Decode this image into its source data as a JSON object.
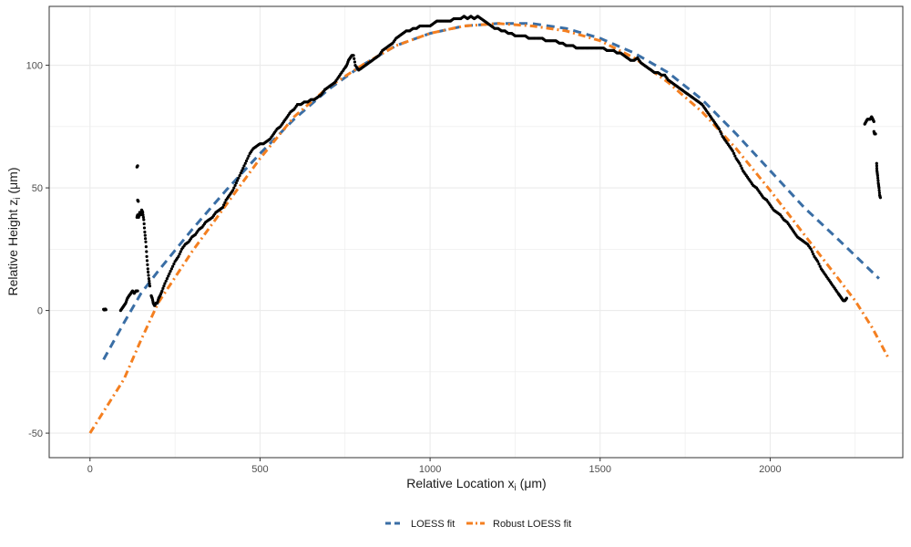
{
  "chart_data": {
    "type": "scatter",
    "xlabel": {
      "main": "Relative Location x",
      "sub": "i",
      "unit": " (μm)"
    },
    "ylabel": {
      "main": "Relative Height z",
      "sub": "i",
      "unit": " (μm)"
    },
    "xlim": [
      -120,
      2390
    ],
    "ylim": [
      -60,
      124
    ],
    "x_ticks": [
      0,
      500,
      1000,
      1500,
      2000
    ],
    "x_tick_labels": [
      "0",
      "500",
      "1000",
      "1500",
      "2000"
    ],
    "y_ticks": [
      -50,
      0,
      50,
      100
    ],
    "y_tick_labels": [
      "-50",
      "0",
      "50",
      "100"
    ],
    "grid": true,
    "legend_position": "bottom",
    "colors": {
      "points": "#000000",
      "loess": "#3a6ea5",
      "robust": "#f47f20",
      "grid": "#ebebeb",
      "panel_border": "#333333"
    },
    "points_series": [
      {
        "points": [
          [
            40,
            0.5
          ],
          [
            42,
            0.2
          ],
          [
            45,
            0.6
          ],
          [
            47,
            0.3
          ]
        ]
      },
      {
        "points": [
          [
            90,
            0
          ],
          [
            95,
            1
          ],
          [
            100,
            2
          ],
          [
            105,
            3
          ],
          [
            110,
            5
          ],
          [
            115,
            6
          ],
          [
            120,
            7
          ],
          [
            125,
            8
          ],
          [
            130,
            7
          ],
          [
            135,
            8
          ],
          [
            140,
            8
          ]
        ]
      },
      {
        "points": [
          [
            138,
            58.5
          ],
          [
            140,
            59
          ]
        ]
      },
      {
        "points": [
          [
            140,
            45
          ],
          [
            142,
            44.5
          ]
        ]
      },
      {
        "points": [
          [
            138,
            38
          ],
          [
            140,
            39
          ],
          [
            143,
            38
          ],
          [
            146,
            40
          ],
          [
            149,
            39
          ],
          [
            152,
            41
          ],
          [
            155,
            40
          ],
          [
            158,
            37
          ],
          [
            161,
            32
          ],
          [
            164,
            28
          ],
          [
            167,
            22
          ],
          [
            170,
            17
          ],
          [
            173,
            13
          ],
          [
            176,
            10
          ]
        ]
      },
      {
        "points": [
          [
            180,
            6
          ],
          [
            183,
            5
          ],
          [
            186,
            3
          ],
          [
            190,
            2
          ],
          [
            194,
            3
          ],
          [
            198,
            3
          ],
          [
            202,
            5
          ],
          [
            206,
            6
          ],
          [
            212,
            8
          ],
          [
            220,
            11
          ],
          [
            230,
            14
          ],
          [
            240,
            17
          ],
          [
            250,
            20
          ],
          [
            260,
            22
          ],
          [
            270,
            25
          ],
          [
            280,
            27
          ],
          [
            290,
            28
          ],
          [
            300,
            30
          ],
          [
            310,
            31
          ],
          [
            320,
            33
          ],
          [
            330,
            34
          ],
          [
            340,
            36
          ],
          [
            350,
            37
          ],
          [
            360,
            38
          ],
          [
            370,
            40
          ],
          [
            380,
            41
          ],
          [
            390,
            42
          ],
          [
            400,
            45
          ],
          [
            410,
            47
          ],
          [
            420,
            49
          ],
          [
            430,
            52
          ],
          [
            440,
            55
          ],
          [
            450,
            58
          ],
          [
            460,
            61
          ],
          [
            470,
            64
          ],
          [
            480,
            66
          ],
          [
            490,
            67
          ],
          [
            500,
            68
          ],
          [
            510,
            68
          ],
          [
            520,
            69
          ],
          [
            530,
            70
          ],
          [
            540,
            72
          ],
          [
            550,
            74
          ],
          [
            560,
            75
          ],
          [
            570,
            77
          ],
          [
            580,
            79
          ],
          [
            590,
            81
          ],
          [
            600,
            82
          ],
          [
            610,
            84
          ],
          [
            620,
            84
          ],
          [
            630,
            85
          ],
          [
            640,
            85
          ],
          [
            650,
            86
          ],
          [
            660,
            86
          ],
          [
            670,
            87
          ],
          [
            680,
            88
          ],
          [
            690,
            90
          ],
          [
            700,
            91
          ],
          [
            710,
            92
          ],
          [
            720,
            93
          ],
          [
            730,
            95
          ],
          [
            740,
            97
          ],
          [
            750,
            99
          ],
          [
            755,
            100
          ],
          [
            760,
            102
          ],
          [
            765,
            103
          ],
          [
            770,
            104
          ],
          [
            775,
            104
          ],
          [
            780,
            100
          ],
          [
            790,
            98
          ],
          [
            800,
            99
          ],
          [
            810,
            100
          ],
          [
            820,
            101
          ],
          [
            830,
            102
          ],
          [
            840,
            103
          ],
          [
            850,
            104
          ],
          [
            860,
            106
          ],
          [
            870,
            107
          ],
          [
            880,
            108
          ],
          [
            890,
            109
          ],
          [
            900,
            111
          ],
          [
            910,
            112
          ],
          [
            920,
            113
          ],
          [
            930,
            114
          ],
          [
            940,
            114
          ],
          [
            950,
            115
          ],
          [
            960,
            115
          ],
          [
            970,
            116
          ],
          [
            980,
            116
          ],
          [
            990,
            116
          ],
          [
            1000,
            116
          ],
          [
            1010,
            117
          ],
          [
            1020,
            118
          ],
          [
            1030,
            118
          ],
          [
            1040,
            118
          ],
          [
            1050,
            118
          ],
          [
            1060,
            118
          ],
          [
            1070,
            119
          ],
          [
            1080,
            119
          ],
          [
            1090,
            119
          ],
          [
            1100,
            120
          ],
          [
            1110,
            119
          ],
          [
            1120,
            120
          ],
          [
            1130,
            119
          ],
          [
            1140,
            120
          ],
          [
            1150,
            119
          ],
          [
            1160,
            118
          ],
          [
            1170,
            117
          ],
          [
            1180,
            116
          ],
          [
            1190,
            115
          ],
          [
            1200,
            115
          ],
          [
            1210,
            114
          ],
          [
            1220,
            114
          ],
          [
            1230,
            113
          ],
          [
            1240,
            113
          ],
          [
            1250,
            112
          ],
          [
            1260,
            112
          ],
          [
            1270,
            112
          ],
          [
            1280,
            112
          ],
          [
            1290,
            111
          ],
          [
            1300,
            111
          ],
          [
            1310,
            111
          ],
          [
            1320,
            111
          ],
          [
            1330,
            111
          ],
          [
            1340,
            110
          ],
          [
            1350,
            110
          ],
          [
            1360,
            110
          ],
          [
            1370,
            110
          ],
          [
            1380,
            109
          ],
          [
            1390,
            109
          ],
          [
            1400,
            108
          ],
          [
            1410,
            108
          ],
          [
            1420,
            108
          ],
          [
            1430,
            107
          ],
          [
            1440,
            107
          ],
          [
            1450,
            107
          ],
          [
            1460,
            107
          ],
          [
            1470,
            107
          ],
          [
            1480,
            107
          ],
          [
            1490,
            107
          ],
          [
            1500,
            107
          ],
          [
            1510,
            107
          ],
          [
            1520,
            106
          ],
          [
            1530,
            106
          ],
          [
            1540,
            106
          ],
          [
            1550,
            105
          ],
          [
            1560,
            105
          ],
          [
            1570,
            104
          ],
          [
            1580,
            103
          ],
          [
            1590,
            102
          ],
          [
            1600,
            102
          ],
          [
            1610,
            103
          ],
          [
            1620,
            101
          ],
          [
            1630,
            100
          ],
          [
            1640,
            99
          ],
          [
            1650,
            98
          ],
          [
            1660,
            97
          ],
          [
            1670,
            97
          ],
          [
            1680,
            96
          ],
          [
            1690,
            96
          ],
          [
            1700,
            94
          ],
          [
            1710,
            93
          ],
          [
            1720,
            92
          ],
          [
            1730,
            91
          ],
          [
            1740,
            90
          ],
          [
            1750,
            89
          ],
          [
            1760,
            88
          ],
          [
            1770,
            87
          ],
          [
            1780,
            86
          ],
          [
            1790,
            85
          ],
          [
            1800,
            84
          ],
          [
            1810,
            82
          ],
          [
            1820,
            80
          ],
          [
            1830,
            78
          ],
          [
            1840,
            76
          ],
          [
            1850,
            74
          ],
          [
            1860,
            71
          ],
          [
            1870,
            69
          ],
          [
            1880,
            67
          ],
          [
            1890,
            65
          ],
          [
            1900,
            62
          ],
          [
            1910,
            60
          ],
          [
            1920,
            57
          ],
          [
            1930,
            55
          ],
          [
            1940,
            53
          ],
          [
            1950,
            51
          ],
          [
            1960,
            50
          ],
          [
            1970,
            48
          ],
          [
            1980,
            46
          ],
          [
            1990,
            45
          ],
          [
            2000,
            43
          ],
          [
            2010,
            41
          ],
          [
            2020,
            40
          ],
          [
            2030,
            39
          ],
          [
            2040,
            37
          ],
          [
            2050,
            36
          ],
          [
            2060,
            34
          ],
          [
            2070,
            32
          ],
          [
            2080,
            30
          ],
          [
            2090,
            29
          ],
          [
            2100,
            28
          ],
          [
            2110,
            27
          ],
          [
            2120,
            25
          ],
          [
            2130,
            22
          ],
          [
            2140,
            20
          ],
          [
            2150,
            17
          ],
          [
            2160,
            15
          ],
          [
            2170,
            13
          ],
          [
            2180,
            11
          ],
          [
            2190,
            9
          ],
          [
            2200,
            7
          ],
          [
            2205,
            6
          ],
          [
            2210,
            5
          ],
          [
            2215,
            4
          ],
          [
            2220,
            4
          ],
          [
            2225,
            5
          ]
        ]
      },
      {
        "points": [
          [
            2278,
            76
          ],
          [
            2282,
            77
          ],
          [
            2286,
            78
          ],
          [
            2290,
            78
          ],
          [
            2294,
            78
          ],
          [
            2298,
            79
          ],
          [
            2302,
            78
          ],
          [
            2305,
            77
          ]
        ]
      },
      {
        "points": [
          [
            2305,
            73
          ],
          [
            2307,
            72
          ],
          [
            2310,
            72
          ]
        ]
      },
      {
        "points": [
          [
            2313,
            60
          ],
          [
            2314,
            57
          ],
          [
            2316,
            55
          ],
          [
            2318,
            52
          ],
          [
            2320,
            50
          ],
          [
            2322,
            47
          ],
          [
            2324,
            46
          ]
        ]
      }
    ],
    "series": [
      {
        "name": "LOESS fit",
        "style": "dashed",
        "x": [
          40,
          100,
          150,
          200,
          300,
          400,
          500,
          600,
          700,
          800,
          900,
          1000,
          1100,
          1200,
          1300,
          1400,
          1500,
          1600,
          1700,
          1800,
          1900,
          2000,
          2100,
          2200,
          2320
        ],
        "y": [
          -20,
          -5,
          7,
          16,
          33,
          49,
          64,
          78,
          90,
          100,
          108,
          113,
          116,
          117,
          117,
          115,
          111,
          105,
          97,
          86,
          72,
          57,
          42,
          29,
          13
        ]
      },
      {
        "name": "Robust LOESS fit",
        "style": "dotdash",
        "x": [
          0,
          100,
          150,
          200,
          300,
          400,
          500,
          600,
          700,
          800,
          900,
          1000,
          1100,
          1200,
          1300,
          1400,
          1500,
          1600,
          1700,
          1800,
          1900,
          2000,
          2100,
          2200,
          2250,
          2300,
          2350
        ],
        "y": [
          -50,
          -28,
          -12,
          3,
          24,
          43,
          62,
          79,
          91,
          100,
          108,
          113,
          116,
          117,
          116,
          114,
          110,
          103,
          93,
          81,
          66,
          49,
          31,
          13,
          4,
          -7,
          -20
        ]
      }
    ],
    "legend": {
      "entries": [
        "LOESS fit",
        "Robust LOESS fit"
      ]
    }
  }
}
